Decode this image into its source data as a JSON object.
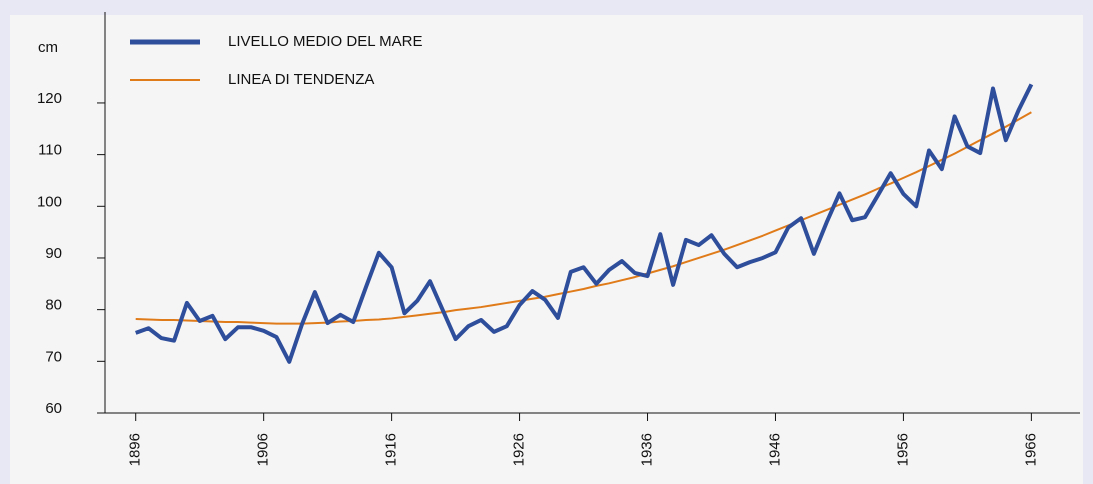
{
  "chart_data": {
    "type": "line",
    "ylabel": "cm",
    "x": [
      1896,
      1897,
      1898,
      1899,
      1900,
      1901,
      1902,
      1903,
      1904,
      1905,
      1906,
      1907,
      1908,
      1909,
      1910,
      1911,
      1912,
      1913,
      1914,
      1915,
      1916,
      1917,
      1918,
      1919,
      1920,
      1921,
      1922,
      1923,
      1924,
      1925,
      1926,
      1927,
      1928,
      1929,
      1930,
      1931,
      1932,
      1933,
      1934,
      1935,
      1936,
      1937,
      1938,
      1939,
      1940,
      1941,
      1942,
      1943,
      1944,
      1945,
      1946,
      1947,
      1948,
      1949,
      1950,
      1951,
      1952,
      1953,
      1954,
      1955,
      1956,
      1957,
      1958,
      1959,
      1960,
      1961,
      1962,
      1963,
      1964,
      1965,
      1966
    ],
    "series": [
      {
        "name": "LIVELLO MEDIO DEL MARE",
        "color": "#2e4d9b",
        "values": [
          75.5,
          76.4,
          74.5,
          74,
          81.3,
          77.8,
          78.8,
          74.3,
          76.6,
          76.6,
          75.9,
          74.7,
          69.9,
          77.2,
          83.4,
          77.4,
          79,
          77.6,
          84.4,
          91,
          88.2,
          79.3,
          81.7,
          85.5,
          79.9,
          74.3,
          76.8,
          78,
          75.7,
          76.8,
          80.9,
          83.6,
          81.9,
          78.4,
          87.3,
          88.2,
          85,
          87.7,
          89.4,
          87.1,
          86.5,
          94.6,
          84.8,
          93.5,
          92.5,
          94.4,
          90.8,
          88.2,
          89.2,
          90,
          91.1,
          95.9,
          97.7,
          90.8,
          96.9,
          102.5,
          97.3,
          97.9,
          102.1,
          106.4,
          102.4,
          100,
          110.8,
          107.2,
          117.4,
          111.6,
          110.3,
          122.8,
          112.8,
          118.6,
          123.6
        ]
      },
      {
        "name": "LINEA DI TENDENZA",
        "color": "#e07b1a",
        "values": [
          78.2,
          78.1,
          78.0,
          78.0,
          77.9,
          77.8,
          77.7,
          77.6,
          77.6,
          77.5,
          77.4,
          77.3,
          77.3,
          77.3,
          77.4,
          77.5,
          77.7,
          77.8,
          78.0,
          78.1,
          78.3,
          78.6,
          78.9,
          79.2,
          79.5,
          79.9,
          80.2,
          80.5,
          80.9,
          81.3,
          81.7,
          82.1,
          82.5,
          83.0,
          83.5,
          84.0,
          84.6,
          85.1,
          85.7,
          86.3,
          87.0,
          87.7,
          88.4,
          89.2,
          90.0,
          90.8,
          91.6,
          92.5,
          93.4,
          94.3,
          95.3,
          96.3,
          97.3,
          98.3,
          99.3,
          100.3,
          101.3,
          102.3,
          103.4,
          104.4,
          105.5,
          106.6,
          107.8,
          109.0,
          110.2,
          111.5,
          112.8,
          114.1,
          115.4,
          116.8,
          118.2
        ]
      }
    ],
    "xlim": [
      1893.6,
      1969.8
    ],
    "xticks": [
      1896,
      1906,
      1916,
      1926,
      1936,
      1946,
      1956,
      1966
    ],
    "ylim": [
      60,
      137.6
    ],
    "yticks": [
      60,
      70,
      80,
      90,
      100,
      110,
      120
    ],
    "grid": false
  }
}
